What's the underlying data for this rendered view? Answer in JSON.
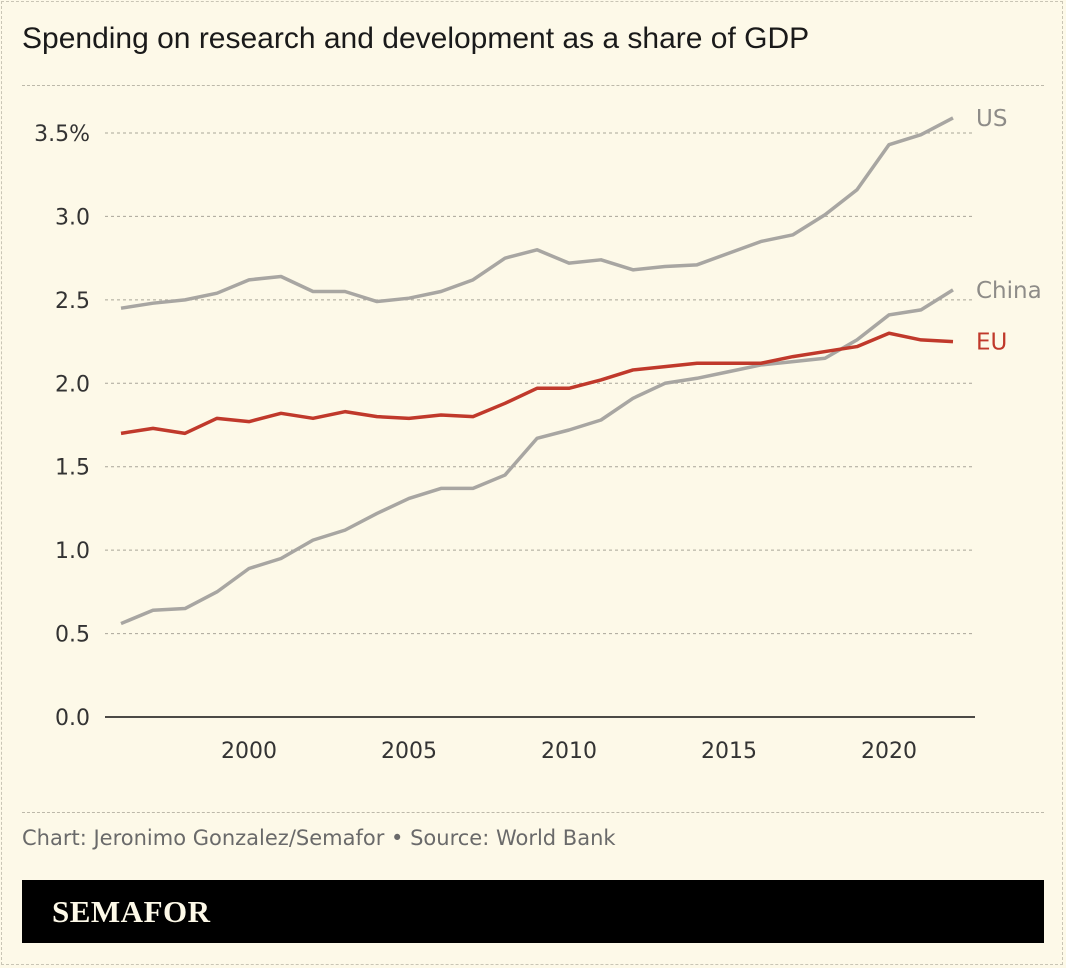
{
  "title": "Spending on research and development as a share of GDP",
  "footer": "Chart: Jeronimo Gonzalez/Semafor • Source: World Bank",
  "logo": "SEMAFOR",
  "chart_data": {
    "type": "line",
    "title": "Spending on research and development as a share of GDP",
    "x": [
      1996,
      1997,
      1998,
      1999,
      2000,
      2001,
      2002,
      2003,
      2004,
      2005,
      2006,
      2007,
      2008,
      2009,
      2010,
      2011,
      2012,
      2013,
      2014,
      2015,
      2016,
      2017,
      2018,
      2019,
      2020,
      2021,
      2022
    ],
    "xlim": [
      1996,
      2022
    ],
    "ylim": [
      0,
      3.5
    ],
    "x_ticks": [
      "2000",
      "2005",
      "2010",
      "2015",
      "2020"
    ],
    "x_tick_values": [
      2000,
      2005,
      2010,
      2015,
      2020
    ],
    "y_ticks": [
      "0.0",
      "0.5",
      "1.0",
      "1.5",
      "2.0",
      "2.5",
      "3.0",
      "3.5%"
    ],
    "y_tick_values": [
      0,
      0.5,
      1,
      1.5,
      2,
      2.5,
      3,
      3.5
    ],
    "grid": "horizontal dashed",
    "legend": "direct labels at line ends",
    "series": [
      {
        "name": "US",
        "color": "#a8a6a2",
        "values": [
          2.45,
          2.48,
          2.5,
          2.54,
          2.62,
          2.64,
          2.55,
          2.55,
          2.49,
          2.51,
          2.55,
          2.62,
          2.75,
          2.8,
          2.72,
          2.74,
          2.68,
          2.7,
          2.71,
          2.78,
          2.85,
          2.89,
          3.01,
          3.16,
          3.43,
          3.49,
          3.59
        ]
      },
      {
        "name": "China",
        "color": "#a8a6a2",
        "values": [
          0.56,
          0.64,
          0.65,
          0.75,
          0.89,
          0.95,
          1.06,
          1.12,
          1.22,
          1.31,
          1.37,
          1.37,
          1.45,
          1.67,
          1.72,
          1.78,
          1.91,
          2.0,
          2.03,
          2.07,
          2.11,
          2.13,
          2.15,
          2.26,
          2.41,
          2.44,
          2.56
        ]
      },
      {
        "name": "EU",
        "color": "#c0392b",
        "values": [
          1.7,
          1.73,
          1.7,
          1.79,
          1.77,
          1.82,
          1.79,
          1.83,
          1.8,
          1.79,
          1.81,
          1.8,
          1.88,
          1.97,
          1.97,
          2.02,
          2.08,
          2.1,
          2.12,
          2.12,
          2.12,
          2.16,
          2.19,
          2.22,
          2.3,
          2.26,
          2.25
        ]
      }
    ]
  }
}
